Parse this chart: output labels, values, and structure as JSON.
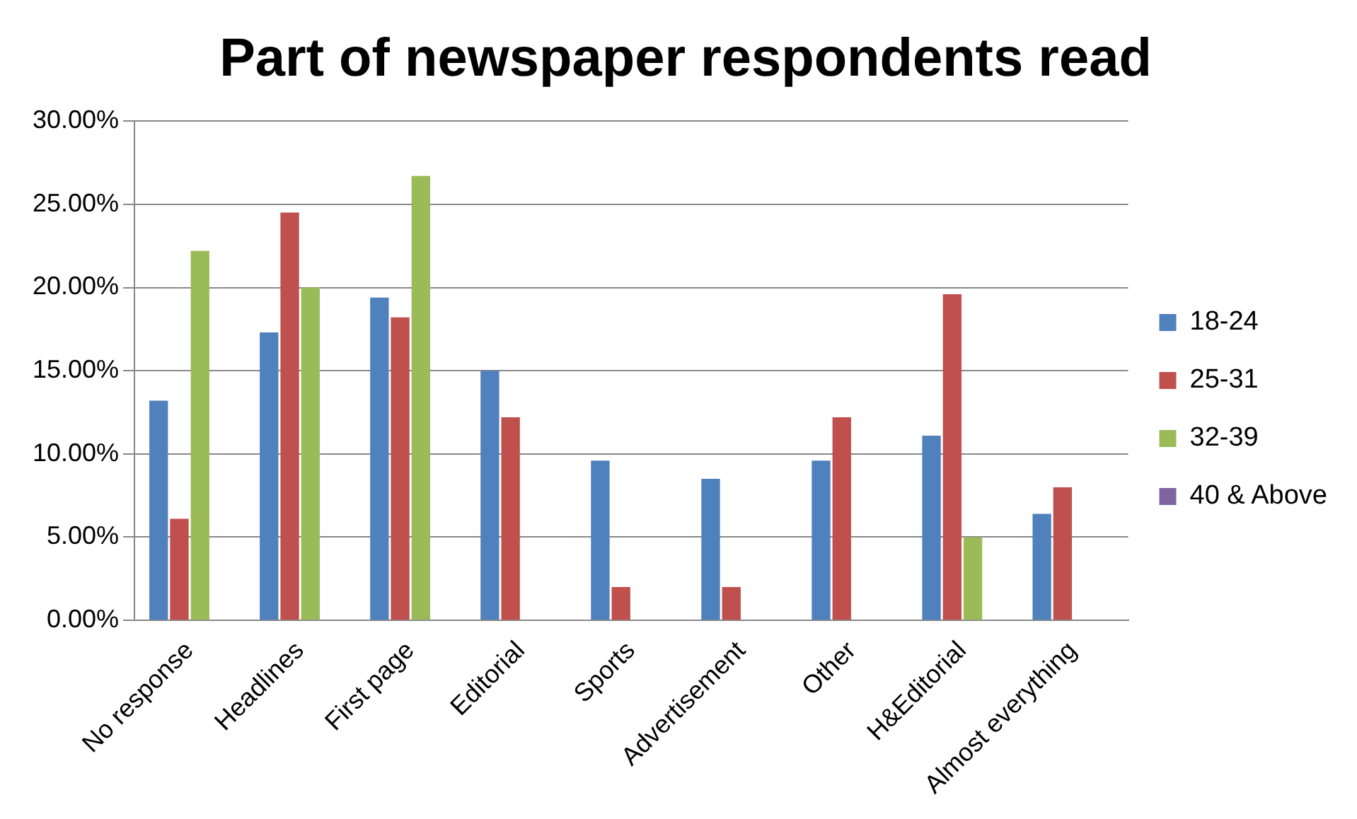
{
  "chart_data": {
    "type": "bar",
    "title": "Part of newspaper respondents read",
    "categories": [
      "No response",
      "Headlines",
      "First page",
      "Editorial",
      "Sports",
      "Advertisement",
      "Other",
      "H&Editorial",
      "Almost everything"
    ],
    "series": [
      {
        "name": "18-24",
        "color": "#4f81bd",
        "values": [
          13.2,
          17.3,
          19.4,
          15.0,
          9.6,
          8.5,
          9.6,
          11.1,
          6.4
        ]
      },
      {
        "name": "25-31",
        "color": "#c0504d",
        "values": [
          6.1,
          24.5,
          18.2,
          12.2,
          2.0,
          2.0,
          12.2,
          19.6,
          8.0
        ]
      },
      {
        "name": "32-39",
        "color": "#9bbb59",
        "values": [
          22.2,
          20.0,
          26.7,
          0,
          0,
          0,
          0,
          5.0,
          0
        ]
      },
      {
        "name": "40 & Above",
        "color": "#8064a2",
        "values": [
          0,
          0,
          0,
          0,
          0,
          0,
          0,
          0,
          0
        ]
      }
    ],
    "ylim": [
      0,
      30
    ],
    "yticks": [
      {
        "value": 0,
        "label": "0.00%"
      },
      {
        "value": 5,
        "label": "5.00%"
      },
      {
        "value": 10,
        "label": "10.00%"
      },
      {
        "value": 15,
        "label": "15.00%"
      },
      {
        "value": 20,
        "label": "20.00%"
      },
      {
        "value": 25,
        "label": "25.00%"
      },
      {
        "value": 30,
        "label": "30.00%"
      }
    ],
    "grid": "y",
    "legend": "right"
  }
}
